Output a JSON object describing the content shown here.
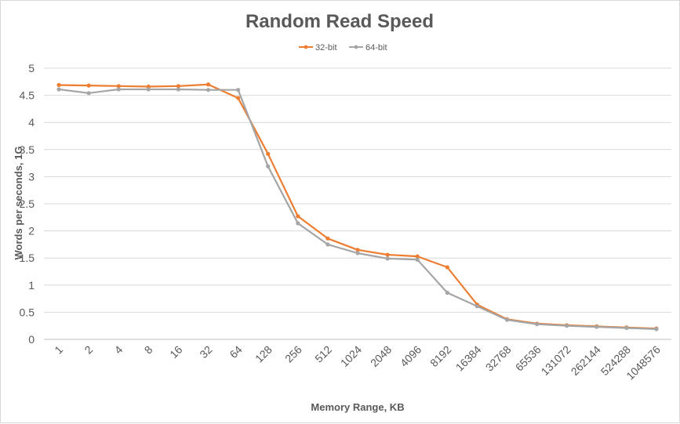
{
  "chart_data": {
    "type": "line",
    "title": "Random Read Speed",
    "xlabel": "Memory Range, KB",
    "ylabel": "Words per seconds, 1G",
    "categories": [
      "1",
      "2",
      "4",
      "8",
      "16",
      "32",
      "64",
      "128",
      "256",
      "512",
      "1024",
      "2048",
      "4096",
      "8192",
      "16384",
      "32768",
      "65536",
      "131072",
      "262144",
      "524288",
      "1048576"
    ],
    "y_ticks": [
      "0",
      "0.5",
      "1",
      "1.5",
      "2",
      "2.5",
      "3",
      "3.5",
      "4",
      "4.5",
      "5"
    ],
    "ylim": [
      0,
      5
    ],
    "grid": true,
    "legend_position": "top",
    "series": [
      {
        "name": "32-bit",
        "color": "#ED7D31",
        "values": [
          4.69,
          4.68,
          4.67,
          4.66,
          4.67,
          4.7,
          4.45,
          3.42,
          2.27,
          1.86,
          1.65,
          1.56,
          1.53,
          1.33,
          0.64,
          0.37,
          0.29,
          0.26,
          0.24,
          0.22,
          0.2
        ]
      },
      {
        "name": "64-bit",
        "color": "#A5A5A5",
        "values": [
          4.61,
          4.54,
          4.61,
          4.61,
          4.61,
          4.6,
          4.6,
          3.19,
          2.14,
          1.75,
          1.59,
          1.49,
          1.47,
          0.86,
          0.61,
          0.36,
          0.28,
          0.25,
          0.23,
          0.21,
          0.19
        ]
      }
    ]
  }
}
